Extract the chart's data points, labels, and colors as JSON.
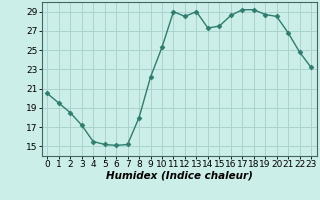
{
  "x": [
    0,
    1,
    2,
    3,
    4,
    5,
    6,
    7,
    8,
    9,
    10,
    11,
    12,
    13,
    14,
    15,
    16,
    17,
    18,
    19,
    20,
    21,
    22,
    23
  ],
  "y": [
    20.5,
    19.5,
    18.5,
    17.2,
    15.5,
    15.2,
    15.1,
    15.2,
    18.0,
    22.2,
    25.3,
    29.0,
    28.5,
    29.0,
    27.3,
    27.5,
    28.6,
    29.2,
    29.2,
    28.7,
    28.5,
    26.8,
    24.8,
    23.2
  ],
  "line_color": "#2e7d6e",
  "marker": "D",
  "marker_size": 2.5,
  "bg_color": "#cceee8",
  "grid_color": "#aad4ce",
  "xlabel": "Humidex (Indice chaleur)",
  "ylabel": "",
  "xlim": [
    -0.5,
    23.5
  ],
  "ylim": [
    14.0,
    30.0
  ],
  "yticks": [
    15,
    17,
    19,
    21,
    23,
    25,
    27,
    29
  ],
  "xticks": [
    0,
    1,
    2,
    3,
    4,
    5,
    6,
    7,
    8,
    9,
    10,
    11,
    12,
    13,
    14,
    15,
    16,
    17,
    18,
    19,
    20,
    21,
    22,
    23
  ],
  "label_fontsize": 7.5,
  "tick_fontsize": 6.5
}
